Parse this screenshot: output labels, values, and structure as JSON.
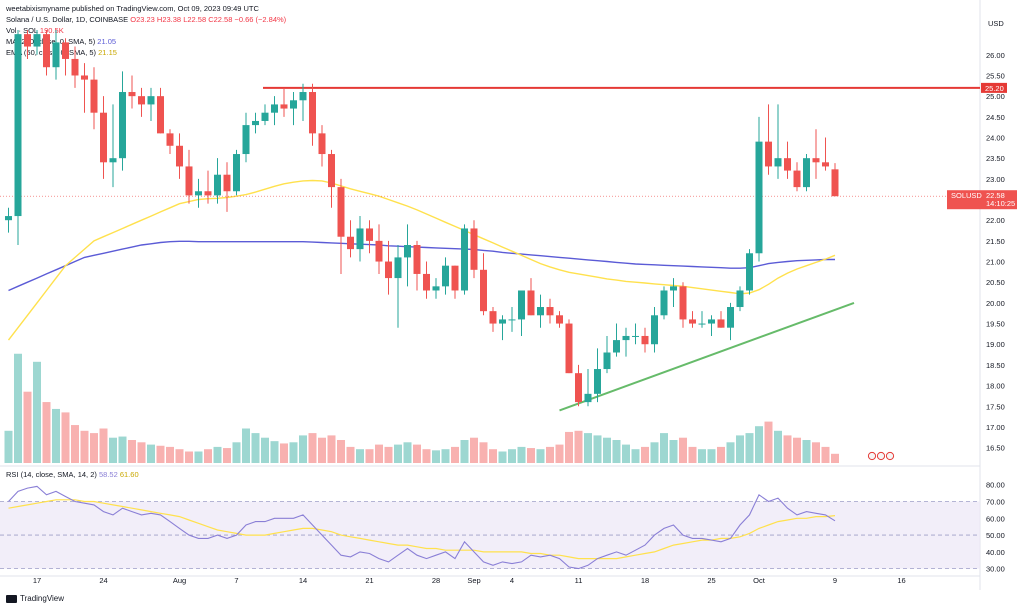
{
  "publisher_line": "weetabixismyname published on TradingView.com, Oct 09, 2023 09:49 UTC",
  "symbol_line": {
    "name": "Solana / U.S. Dollar, 1D, COINBASE",
    "ohlc": "O23.23  H23.38  L22.58  C22.58  −0.66 (−2.84%)"
  },
  "volume_line": {
    "label": "Vol · SOL",
    "value": "190.5K"
  },
  "ma_line": {
    "label": "MA (200, close, 0, SMA, 5)",
    "value": "21.05"
  },
  "ema_line": {
    "label": "EMA (50, close, 0, SMA, 5)",
    "value": "21.15"
  },
  "rsi_line": {
    "label": "RSI (14, close, SMA, 14, 2)",
    "rsi": "58.52",
    "ma": "61.60"
  },
  "footer_brand": "TradingView",
  "colors": {
    "up": "#26a69a",
    "down": "#ef5350",
    "ma200": "#5b5bd6",
    "ema50": "#ffe14d",
    "resistance": "#e53935",
    "support": "#66bb6a",
    "rsi_line": "#8a7fd6",
    "rsi_ma": "#ffe14d"
  },
  "chart_data": {
    "type": "candlestick",
    "currency": "USD",
    "price_axis": {
      "min": 16.2,
      "max": 26.6,
      "ticks": [
        "16.50",
        "17.00",
        "17.50",
        "18.00",
        "18.50",
        "19.00",
        "19.50",
        "20.00",
        "20.50",
        "21.00",
        "21.50",
        "22.00",
        "22.50",
        "23.00",
        "23.50",
        "24.00",
        "24.50",
        "25.00",
        "25.50",
        "26.00"
      ]
    },
    "date_ticks": [
      {
        "label": "17",
        "i": 3
      },
      {
        "label": "24",
        "i": 10
      },
      {
        "label": "Aug",
        "i": 18
      },
      {
        "label": "7",
        "i": 24
      },
      {
        "label": "14",
        "i": 31
      },
      {
        "label": "21",
        "i": 38
      },
      {
        "label": "28",
        "i": 45
      },
      {
        "label": "Sep",
        "i": 49
      },
      {
        "label": "4",
        "i": 53
      },
      {
        "label": "11",
        "i": 60
      },
      {
        "label": "18",
        "i": 67
      },
      {
        "label": "25",
        "i": 74
      },
      {
        "label": "Oct",
        "i": 79
      },
      {
        "label": "9",
        "i": 87
      },
      {
        "label": "16",
        "i": 94
      }
    ],
    "candles": [
      [
        22.0,
        22.3,
        21.7,
        22.1
      ],
      [
        22.1,
        26.6,
        21.4,
        26.5
      ],
      [
        26.5,
        26.6,
        25.9,
        26.2
      ],
      [
        26.2,
        26.6,
        26.0,
        26.5
      ],
      [
        26.5,
        26.6,
        25.5,
        25.7
      ],
      [
        25.7,
        26.6,
        25.4,
        26.3
      ],
      [
        26.3,
        26.4,
        25.5,
        25.9
      ],
      [
        25.9,
        26.2,
        25.2,
        25.5
      ],
      [
        25.5,
        25.8,
        24.6,
        25.4
      ],
      [
        25.4,
        25.7,
        24.2,
        24.6
      ],
      [
        24.6,
        25.0,
        23.0,
        23.4
      ],
      [
        23.4,
        24.8,
        22.8,
        23.5
      ],
      [
        23.5,
        25.6,
        23.2,
        25.1
      ],
      [
        25.1,
        25.5,
        24.7,
        25.0
      ],
      [
        25.0,
        25.2,
        24.5,
        24.8
      ],
      [
        24.8,
        25.2,
        24.4,
        25.0
      ],
      [
        25.0,
        25.2,
        24.1,
        24.1
      ],
      [
        24.1,
        24.2,
        23.6,
        23.8
      ],
      [
        23.8,
        24.1,
        23.0,
        23.3
      ],
      [
        23.3,
        23.7,
        22.4,
        22.6
      ],
      [
        22.6,
        23.0,
        22.3,
        22.7
      ],
      [
        22.7,
        23.2,
        22.4,
        22.6
      ],
      [
        22.6,
        23.5,
        22.4,
        23.1
      ],
      [
        23.1,
        23.4,
        22.2,
        22.7
      ],
      [
        22.7,
        23.7,
        22.6,
        23.6
      ],
      [
        23.6,
        24.6,
        23.4,
        24.3
      ],
      [
        24.3,
        24.6,
        24.1,
        24.4
      ],
      [
        24.4,
        24.8,
        24.3,
        24.6
      ],
      [
        24.6,
        25.0,
        24.3,
        24.8
      ],
      [
        24.8,
        25.2,
        24.5,
        24.7
      ],
      [
        24.7,
        25.1,
        24.3,
        24.9
      ],
      [
        24.9,
        25.3,
        24.4,
        25.1
      ],
      [
        25.1,
        25.3,
        23.8,
        24.1
      ],
      [
        24.1,
        24.3,
        23.3,
        23.6
      ],
      [
        23.6,
        23.7,
        22.3,
        22.8
      ],
      [
        22.8,
        23.0,
        20.7,
        21.6
      ],
      [
        21.6,
        22.0,
        21.1,
        21.3
      ],
      [
        21.3,
        22.1,
        21.0,
        21.8
      ],
      [
        21.8,
        22.0,
        21.2,
        21.5
      ],
      [
        21.5,
        21.9,
        20.7,
        21.0
      ],
      [
        21.0,
        21.5,
        20.2,
        20.6
      ],
      [
        20.6,
        21.4,
        19.4,
        21.1
      ],
      [
        21.1,
        21.9,
        20.4,
        21.4
      ],
      [
        21.4,
        21.5,
        20.3,
        20.7
      ],
      [
        20.7,
        21.0,
        20.1,
        20.3
      ],
      [
        20.3,
        20.6,
        20.1,
        20.4
      ],
      [
        20.4,
        21.1,
        20.2,
        20.9
      ],
      [
        20.9,
        20.9,
        20.1,
        20.3
      ],
      [
        20.3,
        21.9,
        20.2,
        21.8
      ],
      [
        21.8,
        22.0,
        20.6,
        20.8
      ],
      [
        20.8,
        21.2,
        19.7,
        19.8
      ],
      [
        19.8,
        19.9,
        19.3,
        19.5
      ],
      [
        19.5,
        19.7,
        19.1,
        19.6
      ],
      [
        19.6,
        19.9,
        19.3,
        19.6
      ],
      [
        19.6,
        20.3,
        19.2,
        20.3
      ],
      [
        20.3,
        20.6,
        19.7,
        19.7
      ],
      [
        19.7,
        20.2,
        19.4,
        19.9
      ],
      [
        19.9,
        20.1,
        19.5,
        19.7
      ],
      [
        19.7,
        19.8,
        19.4,
        19.5
      ],
      [
        19.5,
        19.6,
        18.3,
        18.3
      ],
      [
        18.3,
        18.5,
        17.5,
        17.6
      ],
      [
        17.6,
        18.4,
        17.5,
        17.8
      ],
      [
        17.8,
        18.9,
        17.6,
        18.4
      ],
      [
        18.4,
        19.2,
        18.3,
        18.8
      ],
      [
        18.8,
        19.5,
        18.7,
        19.1
      ],
      [
        19.1,
        19.4,
        18.7,
        19.2
      ],
      [
        19.2,
        19.5,
        19.0,
        19.2
      ],
      [
        19.2,
        19.4,
        18.8,
        19.0
      ],
      [
        19.0,
        19.9,
        18.8,
        19.7
      ],
      [
        19.7,
        20.4,
        19.6,
        20.3
      ],
      [
        20.3,
        20.6,
        19.9,
        20.4
      ],
      [
        20.4,
        20.5,
        19.4,
        19.6
      ],
      [
        19.6,
        19.8,
        19.4,
        19.5
      ],
      [
        19.5,
        19.8,
        19.4,
        19.5
      ],
      [
        19.5,
        19.7,
        19.2,
        19.6
      ],
      [
        19.6,
        19.8,
        19.4,
        19.4
      ],
      [
        19.4,
        20.0,
        19.1,
        19.9
      ],
      [
        19.9,
        20.4,
        19.8,
        20.3
      ],
      [
        20.3,
        21.3,
        20.2,
        21.2
      ],
      [
        21.2,
        24.5,
        21.0,
        23.9
      ],
      [
        23.9,
        24.8,
        23.1,
        23.3
      ],
      [
        23.3,
        24.8,
        23.0,
        23.5
      ],
      [
        23.5,
        23.9,
        23.0,
        23.2
      ],
      [
        23.2,
        23.4,
        22.7,
        22.8
      ],
      [
        22.8,
        23.6,
        22.7,
        23.5
      ],
      [
        23.5,
        24.2,
        23.0,
        23.4
      ],
      [
        23.4,
        24.0,
        23.2,
        23.3
      ],
      [
        23.23,
        23.38,
        22.58,
        22.58
      ]
    ],
    "volume": [
      28,
      95,
      62,
      88,
      53,
      47,
      44,
      33,
      28,
      26,
      30,
      22,
      23,
      20,
      18,
      16,
      15,
      14,
      12,
      10,
      10,
      12,
      14,
      13,
      18,
      30,
      26,
      22,
      19,
      17,
      18,
      24,
      26,
      22,
      24,
      20,
      14,
      12,
      12,
      16,
      14,
      16,
      18,
      16,
      12,
      11,
      12,
      14,
      20,
      22,
      18,
      12,
      10,
      12,
      14,
      13,
      12,
      14,
      16,
      27,
      28,
      26,
      24,
      22,
      20,
      16,
      12,
      14,
      18,
      26,
      20,
      22,
      14,
      12,
      12,
      14,
      18,
      24,
      26,
      32,
      36,
      28,
      24,
      22,
      20,
      18,
      14,
      8
    ],
    "ma200": [
      20.3,
      20.4,
      20.5,
      20.6,
      20.7,
      20.8,
      20.9,
      21.0,
      21.1,
      21.15,
      21.2,
      21.25,
      21.3,
      21.35,
      21.4,
      21.43,
      21.46,
      21.48,
      21.49,
      21.49,
      21.48,
      21.48,
      21.48,
      21.48,
      21.48,
      21.48,
      21.48,
      21.48,
      21.48,
      21.48,
      21.48,
      21.48,
      21.47,
      21.46,
      21.45,
      21.44,
      21.43,
      21.42,
      21.41,
      21.4,
      21.38,
      21.37,
      21.36,
      21.35,
      21.34,
      21.33,
      21.32,
      21.31,
      21.3,
      21.29,
      21.27,
      21.25,
      21.22,
      21.2,
      21.18,
      21.16,
      21.14,
      21.12,
      21.1,
      21.08,
      21.06,
      21.04,
      21.02,
      21.0,
      20.98,
      20.96,
      20.94,
      20.93,
      20.92,
      20.91,
      20.9,
      20.89,
      20.88,
      20.87,
      20.86,
      20.85,
      20.84,
      20.84,
      20.85,
      20.9,
      20.95,
      20.98,
      21.0,
      21.02,
      21.03,
      21.04,
      21.05,
      21.05
    ],
    "ema50": [
      19.1,
      19.4,
      19.7,
      20.0,
      20.3,
      20.6,
      20.9,
      21.1,
      21.3,
      21.5,
      21.6,
      21.7,
      21.8,
      21.9,
      22.0,
      22.1,
      22.2,
      22.3,
      22.4,
      22.45,
      22.5,
      22.52,
      22.53,
      22.55,
      22.58,
      22.62,
      22.68,
      22.75,
      22.82,
      22.88,
      22.92,
      22.95,
      22.96,
      22.95,
      22.9,
      22.83,
      22.76,
      22.7,
      22.64,
      22.58,
      22.5,
      22.42,
      22.34,
      22.25,
      22.15,
      22.05,
      21.95,
      21.85,
      21.75,
      21.65,
      21.55,
      21.45,
      21.35,
      21.25,
      21.15,
      21.05,
      20.95,
      20.87,
      20.8,
      20.74,
      20.7,
      20.66,
      20.62,
      20.58,
      20.55,
      20.52,
      20.5,
      20.48,
      20.46,
      20.44,
      20.42,
      20.4,
      20.37,
      20.34,
      20.31,
      20.28,
      20.25,
      20.22,
      20.24,
      20.32,
      20.45,
      20.6,
      20.72,
      20.82,
      20.9,
      20.98,
      21.06,
      21.15
    ],
    "levels": {
      "resistance": 25.2,
      "current": 22.58
    },
    "support_trend": {
      "from_i": 58,
      "from_price": 17.4,
      "to_i": 89,
      "to_price": 20.0
    },
    "price_labels": {
      "resistance": "25.20",
      "current": "22.58",
      "symbol": "SOLUSD",
      "countdown": "14:10:25"
    },
    "rsi": {
      "levels": [
        70,
        50,
        30
      ],
      "axis_ticks": [
        "30.00",
        "40.00",
        "50.00",
        "60.00",
        "70.00",
        "80.00"
      ],
      "min": 28,
      "max": 84,
      "labels": {
        "rsi": "58.52",
        "ma": "61.60"
      },
      "values": [
        70,
        76,
        78,
        79,
        74,
        76,
        73,
        70,
        69,
        68,
        64,
        62,
        66,
        64,
        62,
        63,
        62,
        58,
        54,
        50,
        48,
        48,
        50,
        48,
        50,
        56,
        58,
        58,
        60,
        60,
        60,
        62,
        56,
        50,
        44,
        38,
        37,
        40,
        39,
        36,
        34,
        38,
        42,
        38,
        36,
        38,
        40,
        36,
        46,
        40,
        34,
        32,
        34,
        33,
        34,
        38,
        37,
        38,
        36,
        31,
        30,
        32,
        36,
        38,
        40,
        38,
        41,
        44,
        50,
        54,
        56,
        50,
        48,
        48,
        47,
        46,
        48,
        56,
        62,
        74,
        70,
        72,
        66,
        62,
        64,
        63,
        62,
        58.52
      ],
      "ma": [
        66,
        67,
        68,
        69,
        70,
        71,
        71,
        71,
        70,
        70,
        69,
        68,
        67,
        66,
        65,
        64,
        63,
        62,
        61,
        59,
        57,
        55,
        53,
        52,
        51,
        50,
        50,
        50,
        51,
        52,
        53,
        54,
        54,
        53,
        52,
        50,
        49,
        48,
        47,
        46,
        45,
        44,
        44,
        43,
        42,
        42,
        41,
        41,
        41,
        41,
        40,
        40,
        40,
        40,
        40,
        39,
        39,
        38,
        38,
        37,
        36,
        36,
        36,
        36,
        36,
        37,
        38,
        39,
        40,
        42,
        44,
        45,
        46,
        47,
        47,
        48,
        48,
        49,
        51,
        54,
        56,
        58,
        59,
        60,
        60,
        61,
        61,
        61.6
      ]
    }
  }
}
